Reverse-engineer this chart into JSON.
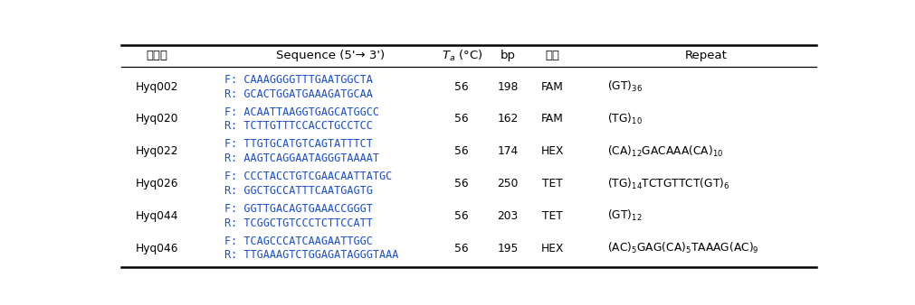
{
  "rows": [
    {
      "gene": "Hyq002",
      "seq_f": "F: CAAAGGGGTTTGAATGGCTA",
      "seq_r": "R: GCACTGGATGAAAGATGCAA",
      "ta": "56",
      "bp": "198",
      "fluor": "FAM",
      "repeat": "(GT)$_{36}$"
    },
    {
      "gene": "Hyq020",
      "seq_f": "F: ACAATTAAGGTGAGCATGGCC",
      "seq_r": "R: TCTTGTTTCCACCTGCCTCC",
      "ta": "56",
      "bp": "162",
      "fluor": "FAM",
      "repeat": "(TG)$_{10}$"
    },
    {
      "gene": "Hyq022",
      "seq_f": "F: TTGTGCATGTCAGTATTTCT",
      "seq_r": "R: AAGTCAGGAATAGGGTAAAAT",
      "ta": "56",
      "bp": "174",
      "fluor": "HEX",
      "repeat": "(CA)$_{12}$GACAAA(CA)$_{10}$"
    },
    {
      "gene": "Hyq026",
      "seq_f": "F: CCCTACCTGTCGAACAATTATGC",
      "seq_r": "R: GGCTGCCATTTCAATGAGTG",
      "ta": "56",
      "bp": "250",
      "fluor": "TET",
      "repeat": "(TG)$_{14}$TCTGTTCT(GT)$_{6}$"
    },
    {
      "gene": "Hyq044",
      "seq_f": "F: GGTTGACAGTGAAACCGGGT",
      "seq_r": "R: TCGGCTGTCCCTCTTCCATT",
      "ta": "56",
      "bp": "203",
      "fluor": "TET",
      "repeat": "(GT)$_{12}$"
    },
    {
      "gene": "Hyq046",
      "seq_f": "F: TCAGCCCATCAAGAATTGGC",
      "seq_r": "R: TTGAAAGTCTGGAGATAGGGTAAA",
      "ta": "56",
      "bp": "195",
      "fluor": "HEX",
      "repeat": "(AC)$_{5}$GAG(CA)$_{5}$TAAAG(AC)$_{9}$"
    }
  ],
  "seq_color": "#1a4fcc",
  "black": "#000000",
  "background_color": "#ffffff",
  "header_fs": 9.5,
  "body_fs": 8.8,
  "seq_fs": 8.5,
  "fig_width": 10.11,
  "fig_height": 3.38,
  "dpi": 100
}
